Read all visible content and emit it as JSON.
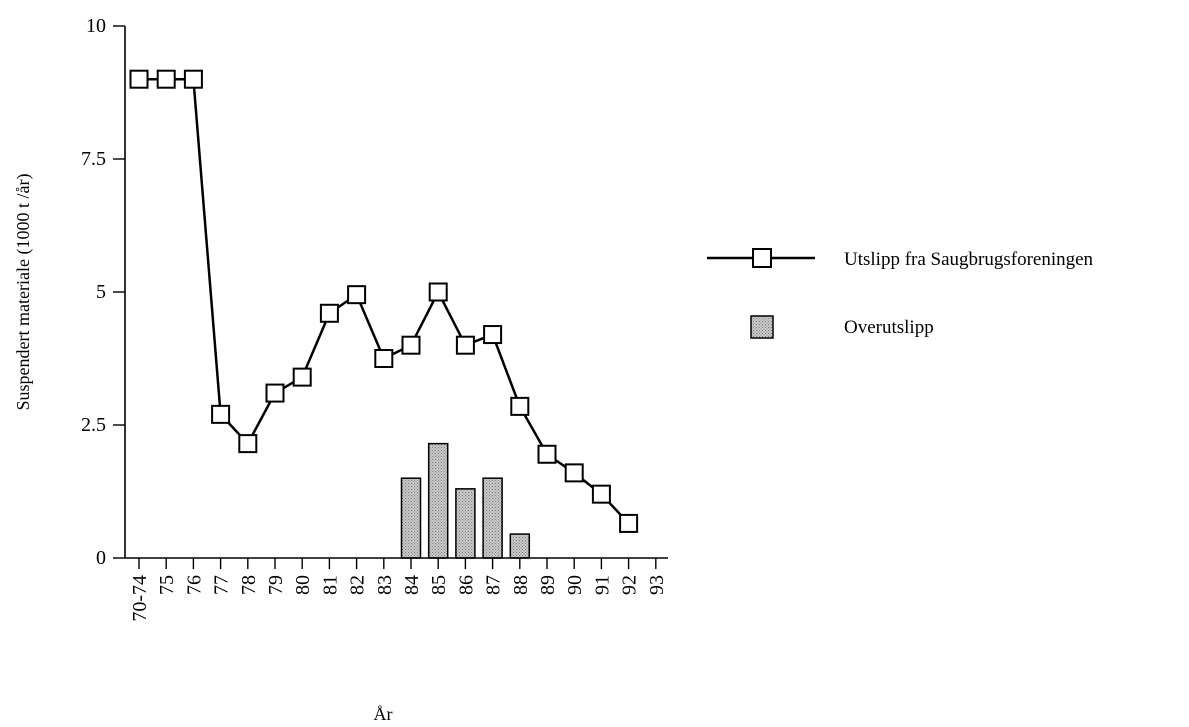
{
  "chart_data": {
    "type": "bar+line",
    "categories": [
      "70-74",
      "75",
      "76",
      "77",
      "78",
      "79",
      "80",
      "81",
      "82",
      "83",
      "84",
      "85",
      "86",
      "87",
      "88",
      "89",
      "90",
      "91",
      "92",
      "93"
    ],
    "xlabel": "År",
    "ylabel": "Suspendert materiale  (1000 t /år)",
    "ylim": [
      0,
      10
    ],
    "yticks": [
      0,
      2.5,
      5,
      7.5,
      10
    ],
    "ytick_labels": [
      "0",
      "2.5",
      "5",
      "7.5",
      "10"
    ],
    "grid": false,
    "legend_position": "right",
    "series": [
      {
        "name": "Utslipp fra Saugbrugsforeningen",
        "type": "line",
        "marker": "open-square",
        "color": "#000000",
        "values": [
          9.0,
          9.0,
          9.0,
          2.7,
          2.15,
          3.1,
          3.4,
          4.6,
          4.95,
          3.75,
          4.0,
          5.0,
          4.0,
          4.2,
          2.85,
          1.95,
          1.6,
          1.2,
          0.65,
          null
        ]
      },
      {
        "name": "Overutslipp",
        "type": "bar",
        "color": "#b8b8b8",
        "values": [
          null,
          null,
          null,
          null,
          null,
          null,
          null,
          null,
          null,
          null,
          1.5,
          2.15,
          1.3,
          1.5,
          0.45,
          null,
          null,
          null,
          null,
          null
        ]
      }
    ]
  }
}
